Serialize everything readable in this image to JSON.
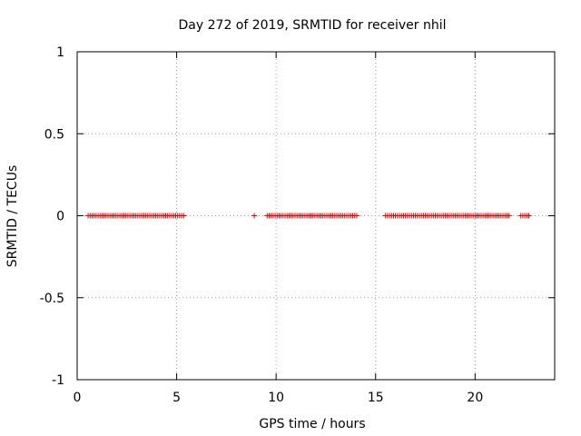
{
  "chart_data": {
    "type": "scatter",
    "title": "Day 272 of 2019, SRMTID for receiver nhil",
    "xlabel": "GPS time / hours",
    "ylabel": "SRMTID / TECUs",
    "xlim": [
      0,
      24
    ],
    "ylim": [
      -1,
      1
    ],
    "x_ticks": [
      0,
      5,
      10,
      15,
      20
    ],
    "x_tick_labels": [
      "0",
      "5",
      "10",
      "15",
      "20"
    ],
    "y_ticks": [
      -1,
      -0.5,
      0,
      0.5,
      1
    ],
    "y_tick_labels": [
      "-1",
      "-0.5",
      "0",
      "0.5",
      "1"
    ],
    "grid": true,
    "marker": "+",
    "series": [
      {
        "name": "SRMTID",
        "color": "#e00000",
        "segments": [
          {
            "start": 0.55,
            "end": 5.3,
            "step": 0.1,
            "y": 0
          },
          {
            "start": 8.9,
            "end": 8.9,
            "step": 0.1,
            "y": 0
          },
          {
            "start": 9.55,
            "end": 14.1,
            "step": 0.1,
            "y": 0
          },
          {
            "start": 15.5,
            "end": 21.7,
            "step": 0.1,
            "y": 0
          },
          {
            "start": 22.3,
            "end": 22.7,
            "step": 0.1,
            "y": 0
          }
        ]
      }
    ]
  }
}
